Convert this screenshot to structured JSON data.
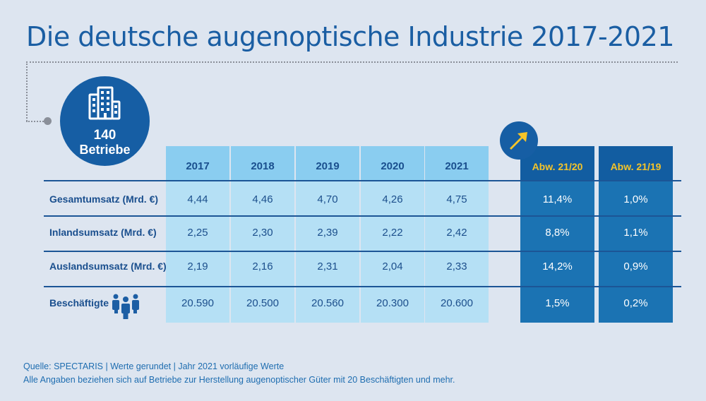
{
  "title": "Die deutsche augenoptische Industrie 2017-2021",
  "badge": {
    "icon": "building-icon",
    "value": "140",
    "label": "Betriebe"
  },
  "highlight_icon": "arrow-up-right-icon",
  "colors": {
    "title": "#1a5ea3",
    "dark_blue": "#165ea4",
    "light_cell": "#b5e0f5",
    "light_head": "#8acdf0",
    "dark_cell": "#1b73b3",
    "accent_yellow": "#f6c428"
  },
  "chart_data": {
    "type": "table",
    "title": "Die deutsche augenoptische Industrie 2017-2021",
    "columns": [
      "2017",
      "2018",
      "2019",
      "2020",
      "2021"
    ],
    "change_columns": [
      "Abw. 21/20",
      "Abw. 21/19"
    ],
    "rows": [
      {
        "label": "Gesamtumsatz (Mrd. €)",
        "values": [
          "4,44",
          "4,46",
          "4,70",
          "4,26",
          "4,75"
        ],
        "changes": [
          "11,4%",
          "1,0%"
        ]
      },
      {
        "label": "Inlandsumsatz (Mrd. €)",
        "values": [
          "2,25",
          "2,30",
          "2,39",
          "2,22",
          "2,42"
        ],
        "changes": [
          "8,8%",
          "1,1%"
        ]
      },
      {
        "label": "Auslandsumsatz (Mrd. €)",
        "values": [
          "2,19",
          "2,16",
          "2,31",
          "2,04",
          "2,33"
        ],
        "changes": [
          "14,2%",
          "0,9%"
        ]
      },
      {
        "label": "Beschäftigte",
        "icon": "people-icon",
        "values": [
          "20.590",
          "20.500",
          "20.560",
          "20.300",
          "20.600"
        ],
        "changes": [
          "1,5%",
          "0,2%"
        ]
      }
    ]
  },
  "footer": {
    "line1": "Quelle: SPECTARIS | Werte gerundet | Jahr 2021 vorläufige Werte",
    "line2": "Alle Angaben beziehen sich auf Betriebe zur Herstellung augenoptischer Güter mit 20 Beschäftigten und mehr."
  }
}
